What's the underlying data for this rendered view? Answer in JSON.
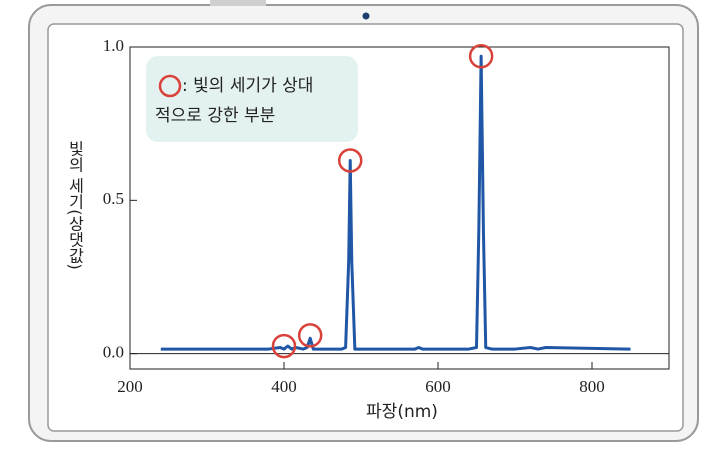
{
  "chart_data": {
    "type": "line",
    "x_label": "파장(nm)",
    "y_label": "빛의 세기(상댓값)",
    "annotation": [
      ": 빛의 세기가 상대",
      "적으로 강한 부분"
    ],
    "x": [
      240,
      380,
      395,
      400,
      405,
      410,
      415,
      425,
      430,
      434,
      438,
      445,
      475,
      480,
      484,
      486,
      488,
      492,
      500,
      570,
      575,
      580,
      600,
      640,
      650,
      653,
      656,
      659,
      662,
      670,
      700,
      720,
      730,
      740,
      850
    ],
    "series": [
      {
        "color": "#1f56a5",
        "values": [
          0.015,
          0.015,
          0.02,
          0.015,
          0.025,
          0.015,
          0.02,
          0.015,
          0.02,
          0.05,
          0.015,
          0.015,
          0.015,
          0.02,
          0.3,
          0.63,
          0.3,
          0.015,
          0.015,
          0.015,
          0.02,
          0.015,
          0.015,
          0.015,
          0.02,
          0.4,
          0.97,
          0.4,
          0.02,
          0.015,
          0.015,
          0.02,
          0.015,
          0.02,
          0.015
        ]
      }
    ],
    "xlim": [
      200,
      900
    ],
    "xticks": [
      200,
      400,
      600,
      800
    ],
    "ylim": [
      -0.05,
      1.0
    ],
    "yticks": [
      {
        "value": 0,
        "label": "0.0"
      },
      {
        "value": 0.5,
        "label": "0.5"
      },
      {
        "value": 1,
        "label": "1.0"
      }
    ],
    "highlight_color": "#d9423a"
  }
}
